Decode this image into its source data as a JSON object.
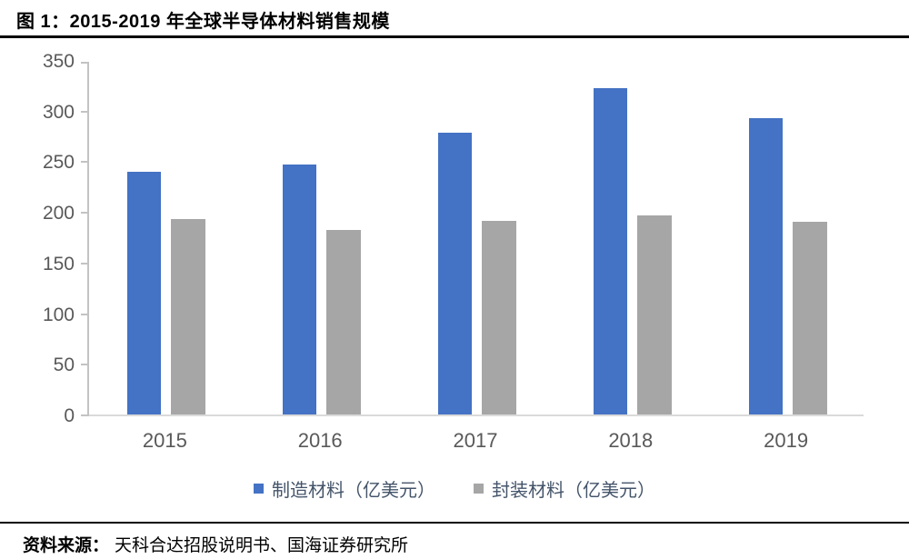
{
  "title": "图 1：2015-2019 年全球半导体材料销售规模",
  "source": {
    "label": "资料来源：",
    "text": "天科合达招股说明书、国海证券研究所"
  },
  "chart_data": {
    "type": "bar",
    "title": "2015-2019 年全球半导体材料销售规模",
    "categories": [
      "2015",
      "2016",
      "2017",
      "2018",
      "2019"
    ],
    "series": [
      {
        "key": "manufacturing-materials",
        "name": "制造材料（亿美元）",
        "color": "#4472C4",
        "values": [
          240,
          247,
          278,
          322,
          293
        ]
      },
      {
        "key": "packaging-materials",
        "name": "封装材料（亿美元）",
        "color": "#A6A6A6",
        "values": [
          193,
          182,
          191,
          197,
          190
        ]
      }
    ],
    "xlabel": "",
    "ylabel": "",
    "ylim": [
      0,
      350
    ],
    "yticks": [
      0,
      50,
      100,
      150,
      200,
      250,
      300,
      350
    ],
    "grid": false,
    "legend_position": "bottom",
    "axis_color": "#C3C3C3",
    "tick_label_color": "#595959",
    "legend_text_color": "#44546A"
  }
}
